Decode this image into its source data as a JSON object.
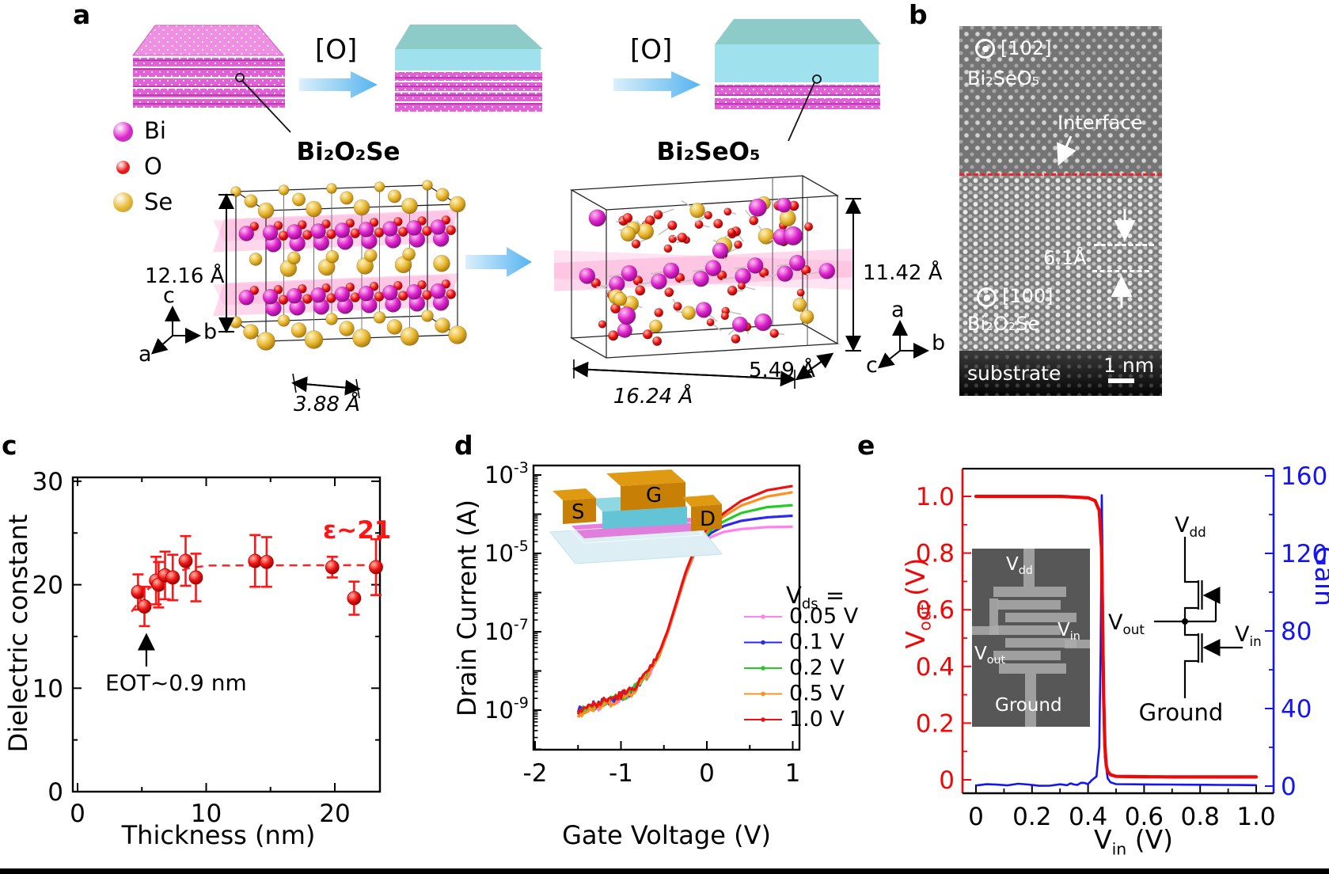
{
  "figure": {
    "panel_letters": {
      "a": "a",
      "b": "b",
      "c": "c",
      "d": "d",
      "e": "e"
    }
  },
  "panel_a": {
    "oxidation_label": "[O]",
    "legend": [
      {
        "label": "Bi",
        "color": "#dd22cc"
      },
      {
        "label": "O",
        "color": "#ee1111"
      },
      {
        "label": "Se",
        "color": "#e8b830"
      }
    ],
    "struct1": {
      "title": "Bi₂O₂Se",
      "height_dim": "12.16 Å",
      "width_dim": "3.88 Å",
      "axes": [
        "c",
        "b",
        "a"
      ]
    },
    "struct2": {
      "title": "Bi₂SeO₅",
      "height_dim": "11.42 Å",
      "length_dim": "16.24 Å",
      "depth_dim": "5.49 Å",
      "axes": [
        "a",
        "b",
        "c"
      ]
    }
  },
  "panel_b": {
    "zone_axis_top": "[102]",
    "material_top": "Bi₂SeO₅",
    "interface_label": "Interface",
    "spacing_label": "6.1Å",
    "zone_axis_bottom": "[100]",
    "material_bottom": "Bi₂O₂Se",
    "substrate_label": "substrate",
    "scale_bar": "1 nm"
  },
  "chart_data": [
    {
      "panel": "c",
      "type": "scatter",
      "xlabel": "Thickness (nm)",
      "ylabel": "Dielectric constant",
      "xlim": [
        -0.4,
        23.8
      ],
      "ylim": [
        0,
        30.4
      ],
      "xticks": [
        0,
        10,
        20
      ],
      "xminor": [
        5,
        15
      ],
      "yticks": [
        0,
        10,
        20,
        30
      ],
      "yminor": [
        5,
        15,
        25
      ],
      "marker_color": "#ff1515",
      "points": [
        [
          4.7,
          19.3,
          1.7
        ],
        [
          5.2,
          17.9,
          1.9
        ],
        [
          6.1,
          20.4,
          2.3
        ],
        [
          6.3,
          20.0,
          2.2
        ],
        [
          6.8,
          20.9,
          2.3
        ],
        [
          7.4,
          20.7,
          2.2
        ],
        [
          8.4,
          22.3,
          2.4
        ],
        [
          9.2,
          20.7,
          2.3
        ],
        [
          13.8,
          22.3,
          2.5
        ],
        [
          14.7,
          22.2,
          2.4
        ],
        [
          19.8,
          21.7,
          1.0
        ],
        [
          21.5,
          18.7,
          1.6
        ],
        [
          23.2,
          21.7,
          2.7
        ]
      ],
      "guide_line": {
        "label": "ε~21",
        "points": [
          [
            4.2,
            17.4
          ],
          [
            5.5,
            19.6
          ],
          [
            7.0,
            20.9
          ],
          [
            8.6,
            21.6
          ],
          [
            10.2,
            21.85
          ],
          [
            23.8,
            21.9
          ]
        ]
      },
      "annotation": {
        "text": "EOT~0.9 nm",
        "arrow_x": 5.35,
        "arrow_y_tip": 15.0,
        "arrow_y_tail": 12.1
      }
    },
    {
      "panel": "d",
      "type": "line",
      "xlabel": "Gate Voltage (V)",
      "ylabel": "Drain Current (A)",
      "xticks": [
        -2,
        -1,
        0,
        1
      ],
      "xminor": [
        -1.5,
        -0.5,
        0.5
      ],
      "ytick_exponents": [
        -3,
        -5,
        -7,
        -9
      ],
      "legend_title": [
        "V",
        "ds",
        " ="
      ],
      "inset_labels": {
        "source": "S",
        "gate": "G",
        "drain": "D"
      },
      "series": [
        {
          "name": "0.05 V",
          "color": "#ff80f0",
          "points": [
            [
              -1.5,
              -9.08
            ],
            [
              -1.2,
              -8.85
            ],
            [
              -0.9,
              -8.6
            ],
            [
              -0.7,
              -8.15
            ],
            [
              -0.55,
              -7.6
            ],
            [
              -0.45,
              -7.0
            ],
            [
              -0.35,
              -6.3
            ],
            [
              -0.25,
              -5.6
            ],
            [
              -0.15,
              -5.05
            ],
            [
              -0.05,
              -4.75
            ],
            [
              0.05,
              -4.58
            ],
            [
              0.2,
              -4.45
            ],
            [
              0.4,
              -4.38
            ],
            [
              0.7,
              -4.33
            ],
            [
              1.0,
              -4.32
            ]
          ]
        },
        {
          "name": "0.1 V",
          "color": "#2a2aee",
          "points": [
            [
              -1.5,
              -9.02
            ],
            [
              -1.2,
              -8.8
            ],
            [
              -0.9,
              -8.55
            ],
            [
              -0.7,
              -8.1
            ],
            [
              -0.55,
              -7.55
            ],
            [
              -0.45,
              -6.95
            ],
            [
              -0.35,
              -6.25
            ],
            [
              -0.25,
              -5.55
            ],
            [
              -0.15,
              -5.0
            ],
            [
              -0.05,
              -4.68
            ],
            [
              0.05,
              -4.48
            ],
            [
              0.2,
              -4.3
            ],
            [
              0.4,
              -4.17
            ],
            [
              0.7,
              -4.08
            ],
            [
              1.0,
              -4.04
            ]
          ]
        },
        {
          "name": "0.2 V",
          "color": "#22cc22",
          "points": [
            [
              -1.5,
              -9.05
            ],
            [
              -1.2,
              -8.82
            ],
            [
              -0.9,
              -8.57
            ],
            [
              -0.7,
              -8.12
            ],
            [
              -0.55,
              -7.57
            ],
            [
              -0.45,
              -6.97
            ],
            [
              -0.35,
              -6.27
            ],
            [
              -0.25,
              -5.57
            ],
            [
              -0.15,
              -5.0
            ],
            [
              -0.05,
              -4.62
            ],
            [
              0.05,
              -4.4
            ],
            [
              0.2,
              -4.18
            ],
            [
              0.4,
              -3.97
            ],
            [
              0.7,
              -3.82
            ],
            [
              1.0,
              -3.77
            ]
          ]
        },
        {
          "name": "0.5 V",
          "color": "#ff9020",
          "points": [
            [
              -1.5,
              -9.1
            ],
            [
              -1.2,
              -8.87
            ],
            [
              -0.9,
              -8.6
            ],
            [
              -0.7,
              -8.13
            ],
            [
              -0.55,
              -7.58
            ],
            [
              -0.45,
              -6.98
            ],
            [
              -0.35,
              -6.28
            ],
            [
              -0.25,
              -5.55
            ],
            [
              -0.15,
              -4.97
            ],
            [
              -0.05,
              -4.57
            ],
            [
              0.05,
              -4.32
            ],
            [
              0.2,
              -4.05
            ],
            [
              0.4,
              -3.78
            ],
            [
              0.7,
              -3.55
            ],
            [
              1.0,
              -3.44
            ]
          ]
        },
        {
          "name": "1.0 V",
          "color": "#ee1111",
          "points": [
            [
              -1.5,
              -9.0
            ],
            [
              -1.2,
              -8.78
            ],
            [
              -0.9,
              -8.52
            ],
            [
              -0.7,
              -8.08
            ],
            [
              -0.55,
              -7.52
            ],
            [
              -0.45,
              -6.93
            ],
            [
              -0.35,
              -6.22
            ],
            [
              -0.25,
              -5.5
            ],
            [
              -0.15,
              -4.93
            ],
            [
              -0.05,
              -4.52
            ],
            [
              0.05,
              -4.26
            ],
            [
              0.2,
              -3.97
            ],
            [
              0.4,
              -3.66
            ],
            [
              0.7,
              -3.39
            ],
            [
              1.0,
              -3.28
            ]
          ]
        }
      ]
    },
    {
      "panel": "e",
      "type": "line",
      "xlabel_parts": [
        "V",
        "in",
        " (V)"
      ],
      "left_axis": {
        "label_parts": [
          "V",
          "out",
          " (V)"
        ],
        "color": "#ee0808",
        "ticks": [
          0,
          0.2,
          0.4,
          0.6,
          0.8,
          1.0
        ]
      },
      "right_axis": {
        "label": "Gain",
        "color": "#1515ee",
        "ticks": [
          0,
          40,
          80,
          120,
          160
        ]
      },
      "xticks": [
        0,
        0.2,
        0.4,
        0.6,
        0.8,
        1.0
      ],
      "gain_peak": 150,
      "switch_threshold_v": 0.45,
      "vout_curve": [
        [
          0,
          1.0
        ],
        [
          0.3,
          1.0
        ],
        [
          0.4,
          0.995
        ],
        [
          0.425,
          0.985
        ],
        [
          0.44,
          0.95
        ],
        [
          0.448,
          0.82
        ],
        [
          0.452,
          0.55
        ],
        [
          0.456,
          0.28
        ],
        [
          0.46,
          0.12
        ],
        [
          0.465,
          0.05
        ],
        [
          0.47,
          0.03
        ],
        [
          0.48,
          0.018
        ],
        [
          0.5,
          0.012
        ],
        [
          0.7,
          0.01
        ],
        [
          1.0,
          0.01
        ]
      ],
      "gain_curve": [
        [
          0,
          0.5
        ],
        [
          0.3,
          0.7
        ],
        [
          0.4,
          1.5
        ],
        [
          0.43,
          5
        ],
        [
          0.44,
          20
        ],
        [
          0.445,
          70
        ],
        [
          0.449,
          150
        ],
        [
          0.452,
          110
        ],
        [
          0.456,
          40
        ],
        [
          0.46,
          15
        ],
        [
          0.47,
          4
        ],
        [
          0.48,
          2
        ],
        [
          0.5,
          1
        ],
        [
          1.0,
          0.5
        ]
      ],
      "micrograph_labels": {
        "vdd": [
          "V",
          "dd"
        ],
        "vout": [
          "V",
          "out"
        ],
        "vin": [
          "V",
          "in"
        ],
        "ground": "Ground"
      },
      "circuit_labels": {
        "vdd": [
          "V",
          "dd"
        ],
        "vout": [
          "V",
          "out"
        ],
        "vin": [
          "V",
          "in"
        ],
        "ground": "Ground"
      }
    }
  ]
}
